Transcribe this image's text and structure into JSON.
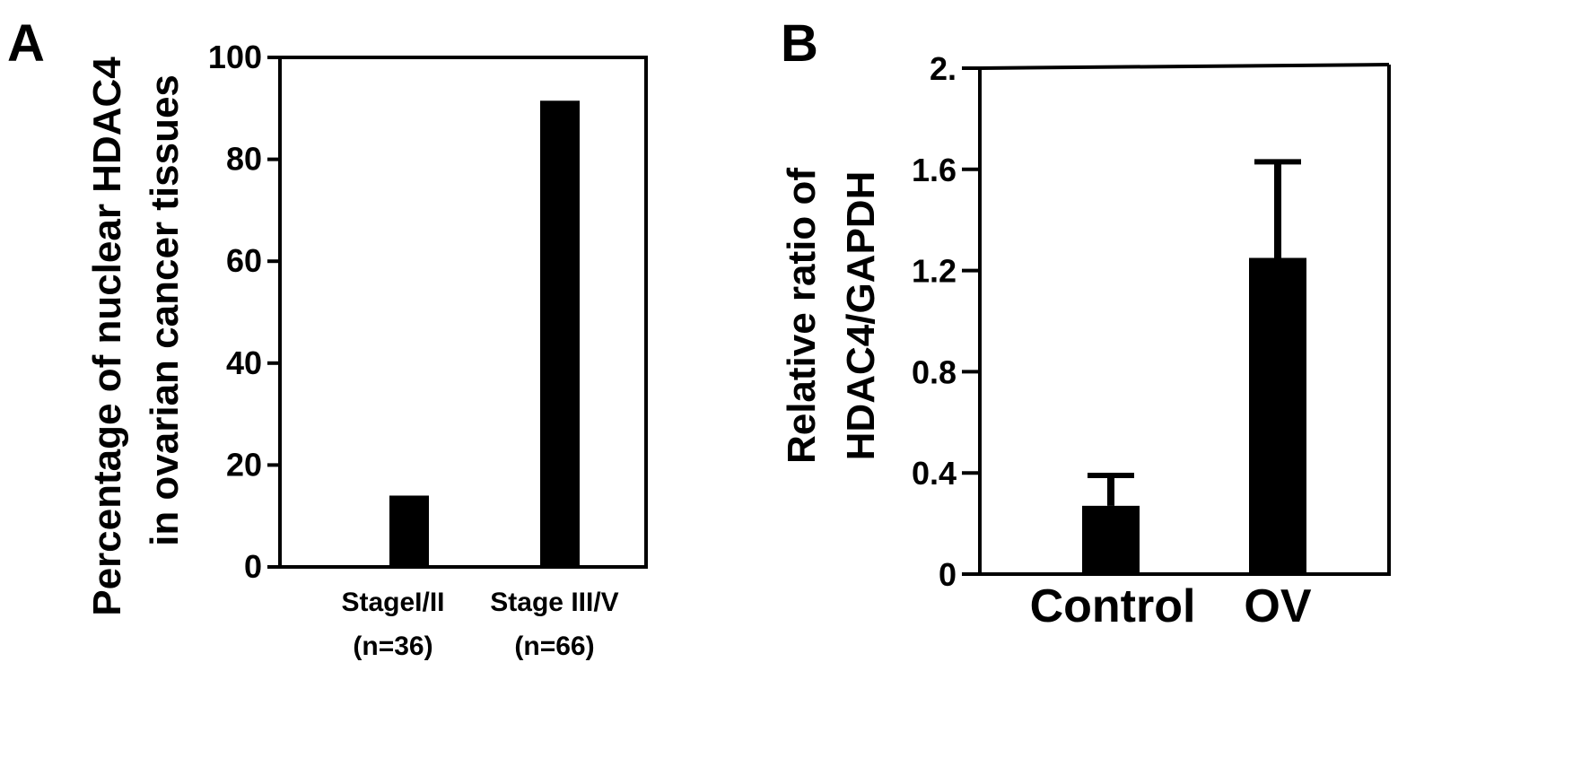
{
  "panels": [
    {
      "letter": "A",
      "chart_data": {
        "type": "bar",
        "categories": [
          "StageI/II (n=36)",
          "Stage III/V (n=66)"
        ],
        "category_lines": [
          [
            "StageI/II",
            "(n=36)"
          ],
          [
            "Stage III/V",
            "(n=66)"
          ]
        ],
        "values": [
          14,
          91.5
        ],
        "ylabel": [
          "Percentage of nuclear HDAC4",
          "in ovarian cancer tissues"
        ],
        "xlabel": "",
        "ylim": [
          0,
          100
        ],
        "yticks": [
          0,
          20,
          40,
          60,
          80,
          100
        ],
        "ytick_labels": [
          "0",
          "20",
          "40",
          "60",
          "80",
          "100"
        ],
        "grid": false,
        "bar_color": "#000000"
      }
    },
    {
      "letter": "B",
      "chart_data": {
        "type": "bar",
        "categories": [
          "Control",
          "OV"
        ],
        "values": [
          0.27,
          1.25
        ],
        "error": [
          0.12,
          0.38
        ],
        "ylabel": [
          "Relative ratio of",
          "HDAC4/GAPDH"
        ],
        "xlabel": "",
        "ylim": [
          0,
          2.0
        ],
        "yticks": [
          0,
          0.4,
          0.8,
          1.2,
          1.6,
          2.0
        ],
        "ytick_labels": [
          "0",
          "0.4",
          "0.8",
          "1.2",
          "1.6",
          "2."
        ],
        "grid": false,
        "bar_color": "#000000"
      }
    }
  ]
}
